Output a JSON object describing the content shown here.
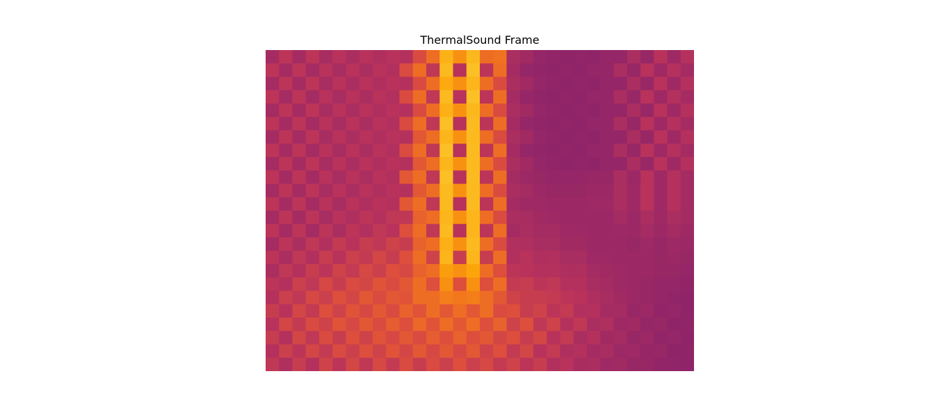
{
  "chart_data": {
    "type": "heatmap",
    "title": "ThermalSound Frame",
    "xlabel": "",
    "ylabel": "",
    "axes_visible": false,
    "grid": false,
    "colorbar": false,
    "colormap": "inferno (mid-range: magenta → orange → yellow)",
    "colors": [
      "#8f2469",
      "#b8325c",
      "#dd4e3d",
      "#f3771d",
      "#fca50a",
      "#fbc52a"
    ],
    "n_rows": 24,
    "n_cols": 32,
    "value_range": [
      0,
      1
    ],
    "values": [
      [
        0.4,
        0.47,
        0.4,
        0.47,
        0.41,
        0.46,
        0.42,
        0.46,
        0.43,
        0.46,
        0.45,
        0.55,
        0.62,
        0.83,
        0.72,
        0.85,
        0.62,
        0.63,
        0.42,
        0.39,
        0.35,
        0.34,
        0.33,
        0.34,
        0.33,
        0.35,
        0.35,
        0.42,
        0.36,
        0.46,
        0.38,
        0.45
      ],
      [
        0.47,
        0.4,
        0.47,
        0.4,
        0.46,
        0.41,
        0.46,
        0.42,
        0.46,
        0.44,
        0.55,
        0.62,
        0.48,
        0.86,
        0.46,
        0.88,
        0.47,
        0.62,
        0.4,
        0.35,
        0.34,
        0.33,
        0.34,
        0.33,
        0.35,
        0.35,
        0.42,
        0.36,
        0.46,
        0.38,
        0.45,
        0.4
      ],
      [
        0.4,
        0.47,
        0.4,
        0.47,
        0.41,
        0.46,
        0.42,
        0.46,
        0.43,
        0.46,
        0.45,
        0.55,
        0.62,
        0.8,
        0.72,
        0.84,
        0.62,
        0.55,
        0.42,
        0.39,
        0.35,
        0.34,
        0.33,
        0.34,
        0.33,
        0.35,
        0.35,
        0.42,
        0.36,
        0.46,
        0.38,
        0.45
      ],
      [
        0.47,
        0.4,
        0.47,
        0.4,
        0.46,
        0.41,
        0.46,
        0.42,
        0.46,
        0.44,
        0.55,
        0.62,
        0.48,
        0.86,
        0.46,
        0.88,
        0.47,
        0.62,
        0.4,
        0.35,
        0.34,
        0.33,
        0.34,
        0.33,
        0.35,
        0.35,
        0.42,
        0.36,
        0.46,
        0.38,
        0.45,
        0.4
      ],
      [
        0.4,
        0.47,
        0.4,
        0.47,
        0.41,
        0.46,
        0.42,
        0.46,
        0.43,
        0.46,
        0.45,
        0.55,
        0.62,
        0.82,
        0.72,
        0.85,
        0.62,
        0.55,
        0.42,
        0.39,
        0.35,
        0.34,
        0.33,
        0.34,
        0.33,
        0.35,
        0.35,
        0.42,
        0.36,
        0.46,
        0.38,
        0.45
      ],
      [
        0.47,
        0.4,
        0.47,
        0.4,
        0.46,
        0.41,
        0.46,
        0.42,
        0.46,
        0.44,
        0.55,
        0.62,
        0.48,
        0.88,
        0.46,
        0.86,
        0.47,
        0.62,
        0.4,
        0.35,
        0.34,
        0.33,
        0.34,
        0.33,
        0.35,
        0.35,
        0.42,
        0.36,
        0.46,
        0.38,
        0.45,
        0.4
      ],
      [
        0.4,
        0.47,
        0.4,
        0.47,
        0.41,
        0.46,
        0.42,
        0.46,
        0.43,
        0.46,
        0.45,
        0.58,
        0.62,
        0.84,
        0.72,
        0.86,
        0.62,
        0.55,
        0.42,
        0.39,
        0.35,
        0.34,
        0.33,
        0.34,
        0.33,
        0.35,
        0.35,
        0.42,
        0.36,
        0.46,
        0.38,
        0.45
      ],
      [
        0.47,
        0.4,
        0.47,
        0.4,
        0.46,
        0.41,
        0.46,
        0.42,
        0.46,
        0.44,
        0.55,
        0.62,
        0.48,
        0.88,
        0.46,
        0.86,
        0.47,
        0.62,
        0.4,
        0.35,
        0.34,
        0.33,
        0.34,
        0.33,
        0.35,
        0.35,
        0.42,
        0.36,
        0.46,
        0.38,
        0.45,
        0.4
      ],
      [
        0.4,
        0.47,
        0.4,
        0.47,
        0.41,
        0.46,
        0.42,
        0.46,
        0.43,
        0.46,
        0.45,
        0.58,
        0.62,
        0.84,
        0.72,
        0.86,
        0.62,
        0.55,
        0.42,
        0.39,
        0.35,
        0.34,
        0.33,
        0.34,
        0.33,
        0.35,
        0.35,
        0.42,
        0.36,
        0.46,
        0.38,
        0.45
      ],
      [
        0.47,
        0.4,
        0.47,
        0.4,
        0.46,
        0.41,
        0.46,
        0.42,
        0.46,
        0.44,
        0.58,
        0.62,
        0.48,
        0.88,
        0.46,
        0.86,
        0.47,
        0.62,
        0.4,
        0.37,
        0.36,
        0.35,
        0.35,
        0.35,
        0.36,
        0.36,
        0.42,
        0.37,
        0.46,
        0.38,
        0.45,
        0.4
      ],
      [
        0.4,
        0.47,
        0.4,
        0.47,
        0.41,
        0.46,
        0.42,
        0.46,
        0.43,
        0.46,
        0.45,
        0.58,
        0.62,
        0.86,
        0.72,
        0.86,
        0.62,
        0.55,
        0.42,
        0.4,
        0.37,
        0.36,
        0.36,
        0.36,
        0.37,
        0.37,
        0.42,
        0.38,
        0.46,
        0.38,
        0.45,
        0.4
      ],
      [
        0.47,
        0.4,
        0.47,
        0.4,
        0.46,
        0.41,
        0.46,
        0.43,
        0.46,
        0.45,
        0.58,
        0.62,
        0.48,
        0.86,
        0.46,
        0.86,
        0.47,
        0.62,
        0.4,
        0.38,
        0.38,
        0.37,
        0.37,
        0.37,
        0.38,
        0.38,
        0.42,
        0.38,
        0.46,
        0.38,
        0.45,
        0.4
      ],
      [
        0.4,
        0.47,
        0.4,
        0.47,
        0.41,
        0.46,
        0.43,
        0.47,
        0.45,
        0.48,
        0.48,
        0.6,
        0.62,
        0.84,
        0.72,
        0.84,
        0.62,
        0.55,
        0.42,
        0.41,
        0.39,
        0.38,
        0.37,
        0.37,
        0.37,
        0.37,
        0.4,
        0.37,
        0.42,
        0.38,
        0.42,
        0.4
      ],
      [
        0.47,
        0.4,
        0.47,
        0.4,
        0.47,
        0.42,
        0.47,
        0.44,
        0.48,
        0.46,
        0.56,
        0.62,
        0.48,
        0.86,
        0.46,
        0.84,
        0.47,
        0.62,
        0.4,
        0.42,
        0.4,
        0.4,
        0.38,
        0.38,
        0.37,
        0.37,
        0.38,
        0.37,
        0.4,
        0.37,
        0.4,
        0.38
      ],
      [
        0.4,
        0.47,
        0.42,
        0.48,
        0.44,
        0.49,
        0.46,
        0.5,
        0.48,
        0.52,
        0.5,
        0.6,
        0.62,
        0.82,
        0.72,
        0.86,
        0.62,
        0.55,
        0.44,
        0.43,
        0.41,
        0.41,
        0.39,
        0.39,
        0.37,
        0.37,
        0.37,
        0.36,
        0.38,
        0.36,
        0.38,
        0.37
      ],
      [
        0.47,
        0.42,
        0.48,
        0.44,
        0.5,
        0.46,
        0.51,
        0.49,
        0.53,
        0.5,
        0.56,
        0.62,
        0.52,
        0.84,
        0.5,
        0.84,
        0.5,
        0.62,
        0.44,
        0.46,
        0.43,
        0.44,
        0.41,
        0.41,
        0.38,
        0.38,
        0.37,
        0.37,
        0.37,
        0.36,
        0.37,
        0.36
      ],
      [
        0.42,
        0.48,
        0.45,
        0.5,
        0.47,
        0.52,
        0.49,
        0.54,
        0.51,
        0.56,
        0.54,
        0.6,
        0.62,
        0.76,
        0.72,
        0.78,
        0.62,
        0.56,
        0.47,
        0.46,
        0.45,
        0.45,
        0.43,
        0.43,
        0.4,
        0.39,
        0.38,
        0.37,
        0.37,
        0.36,
        0.36,
        0.35
      ],
      [
        0.47,
        0.45,
        0.51,
        0.48,
        0.54,
        0.5,
        0.55,
        0.53,
        0.57,
        0.55,
        0.58,
        0.62,
        0.56,
        0.72,
        0.56,
        0.72,
        0.56,
        0.62,
        0.49,
        0.5,
        0.47,
        0.48,
        0.45,
        0.45,
        0.41,
        0.4,
        0.38,
        0.37,
        0.36,
        0.35,
        0.35,
        0.34
      ],
      [
        0.45,
        0.51,
        0.48,
        0.54,
        0.51,
        0.56,
        0.53,
        0.58,
        0.55,
        0.58,
        0.57,
        0.62,
        0.62,
        0.66,
        0.64,
        0.66,
        0.62,
        0.58,
        0.52,
        0.5,
        0.5,
        0.49,
        0.47,
        0.46,
        0.43,
        0.41,
        0.39,
        0.37,
        0.36,
        0.35,
        0.34,
        0.33
      ],
      [
        0.5,
        0.46,
        0.53,
        0.49,
        0.56,
        0.52,
        0.57,
        0.54,
        0.58,
        0.55,
        0.6,
        0.57,
        0.62,
        0.58,
        0.62,
        0.58,
        0.62,
        0.55,
        0.56,
        0.5,
        0.52,
        0.47,
        0.49,
        0.44,
        0.45,
        0.4,
        0.4,
        0.36,
        0.37,
        0.34,
        0.35,
        0.33
      ],
      [
        0.46,
        0.53,
        0.49,
        0.55,
        0.52,
        0.57,
        0.54,
        0.58,
        0.55,
        0.59,
        0.56,
        0.61,
        0.57,
        0.62,
        0.58,
        0.62,
        0.56,
        0.6,
        0.52,
        0.56,
        0.48,
        0.52,
        0.45,
        0.48,
        0.42,
        0.43,
        0.38,
        0.39,
        0.35,
        0.36,
        0.33,
        0.34
      ],
      [
        0.5,
        0.45,
        0.53,
        0.48,
        0.55,
        0.5,
        0.56,
        0.52,
        0.57,
        0.54,
        0.58,
        0.55,
        0.59,
        0.56,
        0.6,
        0.56,
        0.58,
        0.53,
        0.56,
        0.5,
        0.53,
        0.46,
        0.49,
        0.42,
        0.45,
        0.39,
        0.4,
        0.36,
        0.37,
        0.34,
        0.35,
        0.33
      ],
      [
        0.45,
        0.51,
        0.47,
        0.53,
        0.49,
        0.55,
        0.51,
        0.56,
        0.52,
        0.57,
        0.53,
        0.58,
        0.54,
        0.58,
        0.54,
        0.58,
        0.52,
        0.56,
        0.49,
        0.53,
        0.46,
        0.49,
        0.43,
        0.45,
        0.4,
        0.41,
        0.37,
        0.38,
        0.35,
        0.36,
        0.33,
        0.34
      ],
      [
        0.48,
        0.43,
        0.5,
        0.45,
        0.52,
        0.47,
        0.53,
        0.48,
        0.54,
        0.49,
        0.55,
        0.5,
        0.55,
        0.51,
        0.56,
        0.51,
        0.54,
        0.49,
        0.52,
        0.47,
        0.5,
        0.44,
        0.46,
        0.41,
        0.42,
        0.38,
        0.39,
        0.36,
        0.36,
        0.34,
        0.34,
        0.33
      ]
    ]
  }
}
